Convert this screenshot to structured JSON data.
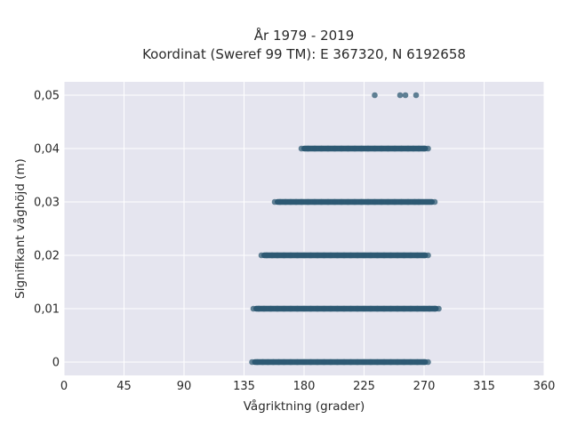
{
  "chart_data": {
    "type": "scatter",
    "title_line1": "År 1979 - 2019",
    "title_line2": "Koordinat (Sweref 99 TM): E 367320, N 6192658",
    "xlabel": "Vågriktning (grader)",
    "ylabel": "Signifikant våghöjd (m)",
    "xlim": [
      0,
      360
    ],
    "ylim": [
      -0.0025,
      0.0525
    ],
    "x_ticks": [
      0,
      45,
      90,
      135,
      180,
      225,
      270,
      315,
      360
    ],
    "x_tick_labels": [
      "0",
      "45",
      "90",
      "135",
      "180",
      "225",
      "270",
      "315",
      "360"
    ],
    "y_ticks": [
      0,
      0.01,
      0.02,
      0.03,
      0.04,
      0.05
    ],
    "y_tick_labels": [
      "0",
      "0,01",
      "0,02",
      "0,03",
      "0,04",
      "0,05"
    ],
    "grid": true,
    "background_color": "#e5e5ef",
    "marker_color": "#2e5a73",
    "series": [
      {
        "points": [
          [
            233,
            0.05
          ],
          [
            252,
            0.05
          ],
          [
            256,
            0.05
          ],
          [
            264,
            0.05
          ],
          [
            178,
            0.04
          ],
          [
            183,
            0.04
          ],
          [
            188,
            0.04
          ],
          [
            193,
            0.04
          ],
          [
            198,
            0.04
          ],
          [
            203,
            0.04
          ],
          [
            208,
            0.04
          ],
          [
            213,
            0.04
          ],
          [
            218,
            0.04
          ],
          [
            223,
            0.04
          ],
          [
            228,
            0.04
          ],
          [
            233,
            0.04
          ],
          [
            238,
            0.04
          ],
          [
            243,
            0.04
          ],
          [
            248,
            0.04
          ],
          [
            253,
            0.04
          ],
          [
            258,
            0.04
          ],
          [
            262,
            0.04
          ],
          [
            266,
            0.04
          ],
          [
            270,
            0.04
          ],
          [
            273,
            0.04
          ],
          [
            158,
            0.03
          ],
          [
            162,
            0.03
          ],
          [
            166,
            0.03
          ],
          [
            170,
            0.03
          ],
          [
            174,
            0.03
          ],
          [
            178,
            0.03
          ],
          [
            183,
            0.03
          ],
          [
            188,
            0.03
          ],
          [
            193,
            0.03
          ],
          [
            198,
            0.03
          ],
          [
            203,
            0.03
          ],
          [
            208,
            0.03
          ],
          [
            213,
            0.03
          ],
          [
            218,
            0.03
          ],
          [
            223,
            0.03
          ],
          [
            228,
            0.03
          ],
          [
            233,
            0.03
          ],
          [
            238,
            0.03
          ],
          [
            243,
            0.03
          ],
          [
            248,
            0.03
          ],
          [
            253,
            0.03
          ],
          [
            258,
            0.03
          ],
          [
            263,
            0.03
          ],
          [
            266,
            0.03
          ],
          [
            278,
            0.03
          ],
          [
            148,
            0.02
          ],
          [
            152,
            0.02
          ],
          [
            156,
            0.02
          ],
          [
            160,
            0.02
          ],
          [
            165,
            0.02
          ],
          [
            170,
            0.02
          ],
          [
            175,
            0.02
          ],
          [
            180,
            0.02
          ],
          [
            185,
            0.02
          ],
          [
            190,
            0.02
          ],
          [
            195,
            0.02
          ],
          [
            200,
            0.02
          ],
          [
            205,
            0.02
          ],
          [
            210,
            0.02
          ],
          [
            215,
            0.02
          ],
          [
            220,
            0.02
          ],
          [
            225,
            0.02
          ],
          [
            230,
            0.02
          ],
          [
            235,
            0.02
          ],
          [
            240,
            0.02
          ],
          [
            245,
            0.02
          ],
          [
            250,
            0.02
          ],
          [
            255,
            0.02
          ],
          [
            260,
            0.02
          ],
          [
            265,
            0.02
          ],
          [
            270,
            0.02
          ],
          [
            273,
            0.02
          ],
          [
            142,
            0.01
          ],
          [
            146,
            0.01
          ],
          [
            150,
            0.01
          ],
          [
            155,
            0.01
          ],
          [
            160,
            0.01
          ],
          [
            165,
            0.01
          ],
          [
            170,
            0.01
          ],
          [
            175,
            0.01
          ],
          [
            180,
            0.01
          ],
          [
            185,
            0.01
          ],
          [
            190,
            0.01
          ],
          [
            195,
            0.01
          ],
          [
            200,
            0.01
          ],
          [
            205,
            0.01
          ],
          [
            210,
            0.01
          ],
          [
            215,
            0.01
          ],
          [
            220,
            0.01
          ],
          [
            225,
            0.01
          ],
          [
            230,
            0.01
          ],
          [
            235,
            0.01
          ],
          [
            240,
            0.01
          ],
          [
            245,
            0.01
          ],
          [
            250,
            0.01
          ],
          [
            255,
            0.01
          ],
          [
            260,
            0.01
          ],
          [
            265,
            0.01
          ],
          [
            270,
            0.01
          ],
          [
            274,
            0.01
          ],
          [
            278,
            0.01
          ],
          [
            281,
            0.01
          ],
          [
            141,
            0
          ],
          [
            145,
            0
          ],
          [
            149,
            0
          ],
          [
            153,
            0
          ],
          [
            157,
            0
          ],
          [
            161,
            0
          ],
          [
            165,
            0
          ],
          [
            170,
            0
          ],
          [
            175,
            0
          ],
          [
            180,
            0
          ],
          [
            185,
            0
          ],
          [
            190,
            0
          ],
          [
            195,
            0
          ],
          [
            200,
            0
          ],
          [
            205,
            0
          ],
          [
            210,
            0
          ],
          [
            215,
            0
          ],
          [
            220,
            0
          ],
          [
            225,
            0
          ],
          [
            230,
            0
          ],
          [
            235,
            0
          ],
          [
            240,
            0
          ],
          [
            245,
            0
          ],
          [
            250,
            0
          ],
          [
            255,
            0
          ],
          [
            260,
            0
          ],
          [
            265,
            0
          ],
          [
            270,
            0
          ],
          [
            273,
            0
          ]
        ]
      }
    ]
  }
}
